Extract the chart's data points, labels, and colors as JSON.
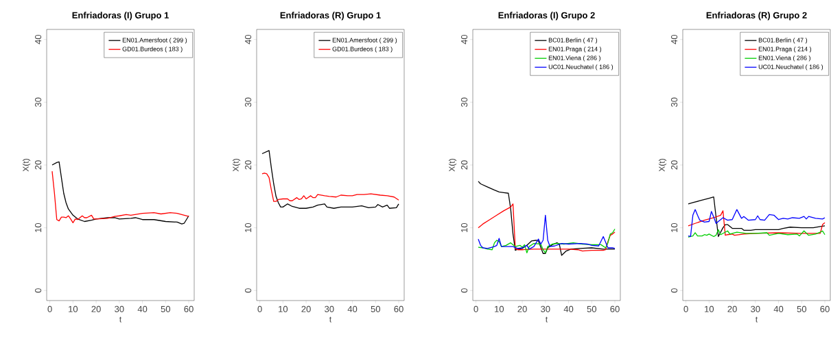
{
  "chart_data": [
    {
      "type": "line",
      "title": "Enfriadoras (I) Grupo 1",
      "xlabel": "t",
      "ylabel": "X(t)",
      "xlim": [
        -1.36,
        62.36
      ],
      "ylim": [
        -1.6,
        41.6
      ],
      "xticks": [
        0,
        10,
        20,
        30,
        40,
        50,
        60
      ],
      "yticks": [
        0,
        10,
        20,
        30,
        40
      ],
      "legend": "top right",
      "series": [
        {
          "name": "EN01.Amersfoot ( 299 )",
          "color": "#000000",
          "x": [
            1,
            3,
            4,
            5,
            6,
            7,
            8,
            10,
            12,
            15,
            18,
            20,
            25,
            28,
            30,
            35,
            37,
            40,
            45,
            50,
            55,
            57,
            58,
            60
          ],
          "values": [
            20.0,
            20.4,
            20.5,
            18,
            15.5,
            14,
            13,
            12,
            11.4,
            11.0,
            11.2,
            11.4,
            11.6,
            11.6,
            11.4,
            11.5,
            11.6,
            11.3,
            11.3,
            11.0,
            10.9,
            10.6,
            10.7,
            11.9
          ]
        },
        {
          "name": "GD01.Burdeos ( 183 )",
          "color": "#ff0000",
          "x": [
            1,
            2,
            3,
            4,
            5,
            6,
            7,
            8,
            9,
            10,
            11,
            12,
            14,
            15,
            16,
            18,
            19,
            20,
            25,
            28,
            30,
            33,
            35,
            40,
            45,
            48,
            52,
            55,
            60
          ],
          "values": [
            19,
            15.5,
            11.3,
            11.1,
            11.7,
            11.7,
            11.6,
            11.9,
            11.4,
            10.8,
            11.4,
            11.3,
            11.9,
            11.6,
            11.6,
            12.0,
            11.4,
            11.4,
            11.5,
            11.8,
            11.9,
            12.1,
            12.0,
            12.3,
            12.4,
            12.2,
            12.4,
            12.3,
            11.8
          ]
        }
      ]
    },
    {
      "type": "line",
      "title": "Enfriadoras (R) Grupo 1",
      "xlabel": "t",
      "ylabel": "X(t)",
      "xlim": [
        -1.36,
        62.36
      ],
      "ylim": [
        -1.6,
        41.6
      ],
      "xticks": [
        0,
        10,
        20,
        30,
        40,
        50,
        60
      ],
      "yticks": [
        0,
        10,
        20,
        30,
        40
      ],
      "legend": "top right",
      "series": [
        {
          "name": "EN01.Amersfoot ( 299 )",
          "color": "#000000",
          "x": [
            1,
            4,
            5,
            6,
            7,
            8,
            9,
            10,
            12,
            14,
            17,
            20,
            23,
            25,
            28,
            29,
            32,
            35,
            40,
            44,
            47,
            50,
            51,
            53,
            55,
            56,
            59,
            60
          ],
          "values": [
            21.8,
            22.3,
            19.5,
            17,
            15,
            14,
            13.3,
            13.3,
            13.8,
            13.4,
            13.1,
            13.1,
            13.3,
            13.6,
            13.8,
            13.3,
            13.1,
            13.3,
            13.3,
            13.5,
            13.2,
            13.3,
            13.7,
            13.3,
            13.6,
            13.1,
            13.2,
            13.8
          ]
        },
        {
          "name": "GD01.Burdeos ( 183 )",
          "color": "#ff0000",
          "x": [
            1,
            2,
            3,
            4,
            5,
            6,
            7,
            8,
            10,
            12,
            13,
            14,
            16,
            17,
            18,
            19,
            20,
            22,
            23,
            24,
            25,
            28,
            30,
            33,
            35,
            38,
            40,
            42,
            45,
            48,
            52,
            55,
            58,
            60
          ],
          "values": [
            18.6,
            18.7,
            18.6,
            18.0,
            16,
            14.2,
            14.2,
            14.5,
            14.6,
            14.6,
            14.3,
            14.3,
            14.8,
            14.5,
            14.6,
            15.1,
            14.6,
            15.1,
            14.8,
            14.8,
            15.3,
            15.1,
            15.0,
            14.9,
            15.2,
            15.1,
            15.1,
            15.3,
            15.3,
            15.4,
            15.2,
            15.1,
            14.9,
            14.4
          ]
        }
      ]
    },
    {
      "type": "line",
      "title": "Enfriadoras (I) Grupo 2",
      "xlabel": "t",
      "ylabel": "X(t)",
      "xlim": [
        -1.36,
        62.36
      ],
      "ylim": [
        -1.6,
        41.6
      ],
      "xticks": [
        0,
        10,
        20,
        30,
        40,
        50,
        60
      ],
      "yticks": [
        0,
        10,
        20,
        30,
        40
      ],
      "legend": "top right",
      "series": [
        {
          "name": "BC01.Berlin ( 47 )",
          "color": "#000000",
          "x": [
            1,
            2,
            5,
            8,
            10,
            12,
            14,
            15,
            16,
            17,
            18,
            20,
            22,
            24,
            26,
            27,
            29,
            30,
            31,
            33,
            35,
            36,
            37,
            39,
            41,
            45,
            50,
            55,
            60
          ],
          "values": [
            17.4,
            17.0,
            16.5,
            16.0,
            15.7,
            15.6,
            15.5,
            13,
            9,
            6.4,
            6.6,
            6.7,
            7.2,
            7.9,
            8.0,
            7.9,
            5.9,
            5.9,
            6.8,
            7.3,
            7.6,
            7.4,
            5.6,
            6.3,
            6.6,
            6.7,
            6.8,
            6.6,
            6.6
          ]
        },
        {
          "name": "EN01.Praga ( 214 )",
          "color": "#ff0000",
          "x": [
            1,
            3,
            6,
            9,
            12,
            15,
            16,
            17,
            18,
            20,
            25,
            30,
            40,
            44,
            46,
            50,
            55,
            56,
            57,
            58,
            59,
            60
          ],
          "values": [
            10.0,
            10.6,
            11.3,
            12.0,
            12.7,
            13.3,
            13.8,
            6.7,
            6.5,
            6.5,
            6.6,
            6.6,
            6.6,
            6.5,
            6.3,
            6.4,
            6.4,
            6.5,
            7.8,
            8.8,
            9.0,
            9.3
          ]
        },
        {
          "name": "EN01.Viena ( 286 )",
          "color": "#00cd00",
          "x": [
            1,
            3,
            5,
            7,
            8,
            9,
            10,
            11,
            13,
            15,
            17,
            19,
            20,
            21,
            22,
            23,
            25,
            28,
            29,
            30,
            31,
            33,
            35,
            38,
            42,
            46,
            50,
            54,
            56,
            57,
            58,
            59,
            60
          ],
          "values": [
            6.9,
            6.8,
            6.6,
            6.5,
            7.6,
            8.0,
            7.8,
            7.0,
            7.2,
            7.6,
            7.0,
            7.2,
            6.9,
            7.3,
            6.0,
            7.0,
            7.5,
            7.4,
            6.5,
            6.0,
            7.0,
            7.4,
            7.5,
            7.4,
            7.6,
            7.4,
            7.3,
            7.3,
            6.8,
            7.6,
            9.0,
            9.2,
            9.8
          ]
        },
        {
          "name": "UC01.Neuchatel ( 186 )",
          "color": "#0000ff",
          "x": [
            1,
            2,
            3,
            5,
            8,
            9,
            10,
            11,
            13,
            16,
            18,
            20,
            22,
            23,
            25,
            27,
            28,
            29,
            30,
            31,
            32,
            34,
            37,
            40,
            45,
            48,
            50,
            53,
            55,
            57,
            59,
            60
          ],
          "values": [
            8.2,
            7.2,
            6.8,
            6.7,
            7.0,
            7.2,
            8.3,
            7.0,
            7.0,
            7.0,
            6.7,
            6.8,
            7.2,
            6.6,
            7.0,
            8.2,
            7.4,
            8.0,
            12.0,
            8.0,
            7.0,
            7.1,
            7.5,
            7.4,
            7.5,
            7.4,
            7.2,
            7.1,
            8.6,
            6.8,
            6.8,
            6.7
          ]
        }
      ]
    },
    {
      "type": "line",
      "title": "Enfriadoras (R) Grupo 2",
      "xlabel": "t",
      "ylabel": "X(t)",
      "xlim": [
        -1.36,
        62.36
      ],
      "ylim": [
        -1.6,
        41.6
      ],
      "xticks": [
        0,
        10,
        20,
        30,
        40,
        50,
        60
      ],
      "yticks": [
        0,
        10,
        20,
        30,
        40
      ],
      "legend": "top right",
      "series": [
        {
          "name": "BC01.Berlin ( 47 )",
          "color": "#000000",
          "x": [
            1,
            3,
            6,
            8,
            10,
            12,
            14,
            16,
            17,
            18,
            20,
            24,
            25,
            28,
            30,
            37,
            40,
            42,
            45,
            50,
            55,
            58,
            60
          ],
          "values": [
            13.8,
            14.0,
            14.3,
            14.5,
            14.7,
            14.9,
            8.6,
            10.0,
            10.5,
            10.5,
            9.9,
            9.9,
            9.6,
            9.6,
            9.7,
            9.7,
            9.7,
            9.9,
            10.1,
            10.0,
            10.0,
            10.2,
            10.3
          ]
        },
        {
          "name": "EN01.Praga ( 214 )",
          "color": "#ff0000",
          "x": [
            1,
            4,
            8,
            12,
            15,
            16,
            17,
            18,
            20,
            21,
            25,
            30,
            40,
            50,
            58,
            59,
            60
          ],
          "values": [
            10.3,
            10.7,
            11.2,
            11.6,
            12.0,
            12.7,
            8.8,
            8.9,
            9.0,
            8.8,
            9.0,
            9.1,
            9.2,
            9.1,
            9.1,
            10.5,
            10.8
          ]
        },
        {
          "name": "EN01.Viena ( 286 )",
          "color": "#00cd00",
          "x": [
            1,
            2,
            3,
            4,
            5,
            7,
            8,
            9,
            10,
            12,
            13,
            14,
            15,
            18,
            19,
            22,
            26,
            30,
            35,
            36,
            40,
            44,
            48,
            49,
            51,
            53,
            56,
            58,
            59,
            60
          ],
          "values": [
            8.5,
            8.6,
            8.7,
            9.2,
            8.7,
            8.7,
            8.9,
            8.8,
            9.0,
            8.6,
            8.8,
            9.7,
            8.9,
            9.5,
            9.0,
            9.3,
            9.1,
            9.1,
            9.2,
            8.8,
            9.1,
            8.9,
            9.0,
            8.7,
            9.5,
            8.8,
            9.0,
            9.3,
            9.5,
            8.9
          ]
        },
        {
          "name": "UC01.Neuchatel ( 186 )",
          "color": "#0000ff",
          "x": [
            1,
            2,
            3,
            4,
            5,
            6,
            8,
            10,
            11,
            12,
            13,
            15,
            16,
            18,
            20,
            22,
            24,
            25,
            27,
            30,
            31,
            32,
            34,
            36,
            38,
            40,
            42,
            44,
            46,
            49,
            51,
            52,
            53,
            56,
            59,
            60
          ],
          "values": [
            8.7,
            8.6,
            12.0,
            12.9,
            12.0,
            11.2,
            10.9,
            11.0,
            12.6,
            11.7,
            10.7,
            11.3,
            11.6,
            11.2,
            11.3,
            12.9,
            11.5,
            11.8,
            11.2,
            11.3,
            11.9,
            11.3,
            11.2,
            12.1,
            12.0,
            11.3,
            11.5,
            11.4,
            11.6,
            11.5,
            11.8,
            11.4,
            11.8,
            11.5,
            11.4,
            11.6
          ]
        }
      ]
    }
  ]
}
